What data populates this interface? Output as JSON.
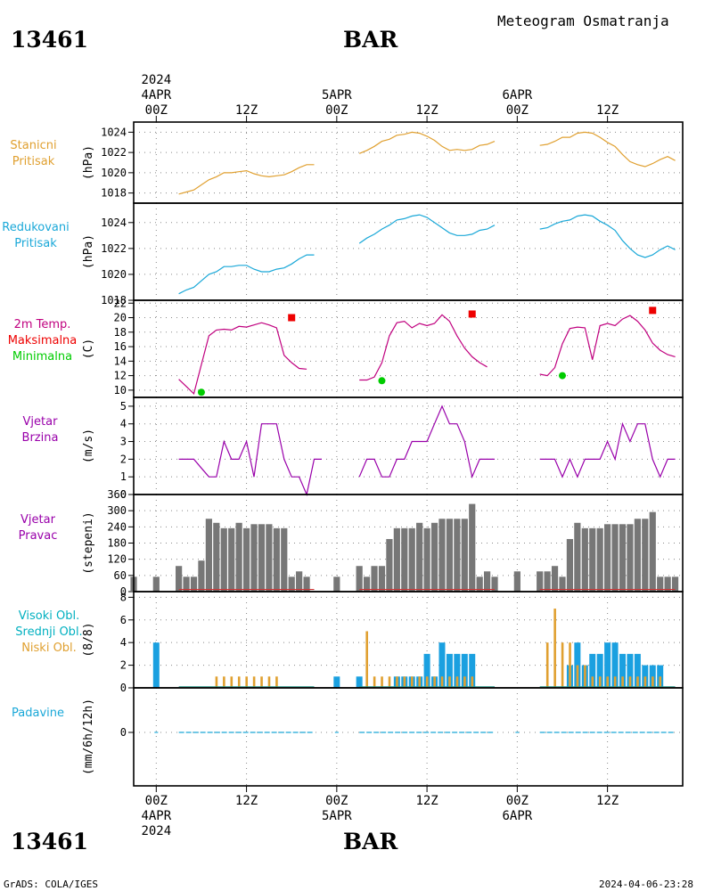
{
  "header": {
    "station_id": "13461",
    "station_name": "BAR",
    "title": "Meteogram Osmatranja",
    "footer_left": "GrADS: COLA/IGES",
    "footer_right": "2024-04-06-23:28"
  },
  "time_axis": {
    "top_year": "2024",
    "bottom_year": "2024",
    "ticks": [
      {
        "h": 0,
        "lines": [
          "4APR",
          "00Z"
        ]
      },
      {
        "h": 12,
        "lines": [
          "12Z"
        ]
      },
      {
        "h": 24,
        "lines": [
          "5APR",
          "00Z"
        ]
      },
      {
        "h": 36,
        "lines": [
          "12Z"
        ]
      },
      {
        "h": 48,
        "lines": [
          "6APR",
          "00Z"
        ]
      },
      {
        "h": 60,
        "lines": [
          "12Z"
        ]
      }
    ],
    "bottom_ticks": [
      {
        "h": 0,
        "lines": [
          "00Z",
          "4APR"
        ]
      },
      {
        "h": 12,
        "lines": [
          "12Z"
        ]
      },
      {
        "h": 24,
        "lines": [
          "00Z",
          "5APR"
        ]
      },
      {
        "h": 36,
        "lines": [
          "12Z"
        ]
      },
      {
        "h": 48,
        "lines": [
          "00Z",
          "6APR"
        ]
      },
      {
        "h": 60,
        "lines": [
          "12Z"
        ]
      }
    ],
    "range_hours": [
      -3,
      70
    ]
  },
  "panels": {
    "stanicni": {
      "labels": [
        "Stanicni",
        "Pritisak"
      ],
      "color": "#e0a030",
      "unit": "(hPa)"
    },
    "redukovani": {
      "labels": [
        "Redukovani",
        "Pritisak"
      ],
      "color": "#1aa8d8",
      "unit": "(hPa)"
    },
    "temp": {
      "labels": [
        "2m Temp.",
        "Maksimalna",
        "Minimalna"
      ],
      "colors": [
        "#c0007f",
        "#ee0000",
        "#00cc00"
      ],
      "unit": "(C)"
    },
    "brzina": {
      "labels": [
        "Vjetar",
        "Brzina"
      ],
      "color": "#9900aa",
      "unit": "(m/s)"
    },
    "pravac": {
      "labels": [
        "Vjetar",
        "Pravac"
      ],
      "color": "#9900aa",
      "unit": "(stepeni)"
    },
    "oblaci": {
      "labels": [
        "Visoki Obl.",
        "Srednji Obl.",
        "Niski Obl."
      ],
      "colors": [
        "#00b0c0",
        "#00b0c0",
        "#e0a030"
      ],
      "unit": "(8/8)"
    },
    "padavine": {
      "labels": [
        "Padavine"
      ],
      "color": "#1aa8d8",
      "unit": "(mm/6h/12h)"
    }
  },
  "chart_data": [
    {
      "type": "line",
      "name": "Stanicni Pritisak",
      "ylabel": "(hPa)",
      "ylim": [
        1017,
        1025
      ],
      "yticks": [
        1018,
        1020,
        1022,
        1024
      ],
      "x": [
        3,
        4,
        5,
        6,
        7,
        8,
        9,
        10,
        11,
        12,
        13,
        14,
        15,
        16,
        17,
        18,
        19,
        20,
        21,
        27,
        28,
        29,
        30,
        31,
        32,
        33,
        34,
        35,
        36,
        37,
        38,
        39,
        40,
        41,
        42,
        43,
        44,
        45,
        51,
        52,
        53,
        54,
        55,
        56,
        57,
        58,
        59,
        60,
        61,
        62,
        63,
        64,
        65,
        66,
        67,
        68,
        69
      ],
      "series": [
        {
          "segments": [
            [
              1017.9,
              1018.1,
              1018.3,
              1018.8,
              1019.3,
              1019.6,
              1020.0,
              1020.0,
              1020.1,
              1020.2,
              1019.9,
              1019.7,
              1019.6,
              1019.7,
              1019.8,
              1020.1,
              1020.5,
              1020.8,
              1020.8
            ],
            [
              1021.9,
              1022.2,
              1022.6,
              1023.1,
              1023.3,
              1023.7,
              1023.8,
              1024.0,
              1023.9,
              1023.6,
              1023.2,
              1022.6,
              1022.2,
              1022.3,
              1022.2,
              1022.3,
              1022.7,
              1022.8,
              1023.1
            ],
            [
              1022.7,
              1022.8,
              1023.1,
              1023.5,
              1023.5,
              1023.9,
              1024.0,
              1023.9,
              1023.5,
              1023.0,
              1022.6,
              1021.8,
              1021.1,
              1020.8,
              1020.6,
              1020.9,
              1021.3,
              1021.6,
              1021.2
            ]
          ]
        }
      ]
    },
    {
      "type": "line",
      "name": "Redukovani Pritisak",
      "ylabel": "(hPa)",
      "ylim": [
        1018,
        1025.5
      ],
      "yticks": [
        1018,
        1020,
        1022,
        1024
      ],
      "series": [
        {
          "segments": [
            [
              1018.5,
              1018.8,
              1019.0,
              1019.5,
              1020.0,
              1020.2,
              1020.6,
              1020.6,
              1020.7,
              1020.7,
              1020.4,
              1020.2,
              1020.2,
              1020.4,
              1020.5,
              1020.8,
              1021.2,
              1021.5,
              1021.5
            ],
            [
              1022.4,
              1022.8,
              1023.1,
              1023.5,
              1023.8,
              1024.2,
              1024.3,
              1024.5,
              1024.6,
              1024.4,
              1024.0,
              1023.6,
              1023.2,
              1023.0,
              1023.0,
              1023.1,
              1023.4,
              1023.5,
              1023.8
            ],
            [
              1023.5,
              1023.6,
              1023.9,
              1024.1,
              1024.2,
              1024.5,
              1024.6,
              1024.5,
              1024.1,
              1023.8,
              1023.4,
              1022.6,
              1022.0,
              1021.5,
              1021.3,
              1021.5,
              1021.9,
              1022.2,
              1021.9
            ]
          ]
        }
      ]
    },
    {
      "type": "line",
      "name": "2m Temp.",
      "ylabel": "(C)",
      "ylim": [
        9,
        22.4
      ],
      "yticks": [
        10,
        12,
        14,
        16,
        18,
        20,
        22
      ],
      "series": [
        {
          "name": "2m Temp.",
          "segments": [
            [
              11.5,
              10.5,
              9.5,
              13.5,
              17.5,
              18.3,
              18.4,
              18.3,
              18.8,
              18.7,
              19.0,
              19.3,
              19.0,
              18.6,
              14.8,
              13.8,
              13.0,
              12.9,
              null
            ],
            [
              11.4,
              11.4,
              11.8,
              13.8,
              17.5,
              19.3,
              19.5,
              18.6,
              19.2,
              18.9,
              19.2,
              20.4,
              19.5,
              17.5,
              15.8,
              14.6,
              13.8,
              13.2,
              null
            ],
            [
              12.2,
              12.0,
              13.1,
              16.4,
              18.5,
              18.7,
              18.6,
              14.2,
              18.9,
              19.2,
              18.9,
              19.8,
              20.3,
              19.5,
              18.3,
              16.5,
              15.5,
              14.9,
              14.6
            ]
          ]
        },
        {
          "name": "Maksimalna",
          "points": [
            [
              18,
              20.0
            ],
            [
              42,
              20.5
            ],
            [
              66,
              21.0
            ]
          ]
        },
        {
          "name": "Minimalna",
          "points": [
            [
              6,
              9.7
            ],
            [
              30,
              11.3
            ],
            [
              54,
              12.0
            ]
          ]
        }
      ]
    },
    {
      "type": "line",
      "name": "Vjetar Brzina",
      "ylabel": "(m/s)",
      "ylim": [
        0,
        5.5
      ],
      "yticks": [
        0,
        1,
        2,
        3,
        4,
        5
      ],
      "series": [
        {
          "segments": [
            [
              2,
              2,
              2,
              1.5,
              1,
              1,
              3,
              2,
              2,
              3,
              1,
              4,
              4,
              4,
              2,
              1,
              1,
              0,
              2,
              2
            ],
            [
              1,
              2,
              2,
              1,
              1,
              2,
              2,
              3,
              3,
              3,
              4,
              5,
              4,
              4,
              3,
              1,
              2,
              2,
              2
            ],
            [
              2,
              2,
              2,
              1,
              2,
              1,
              2,
              2,
              2,
              3,
              2,
              4,
              3,
              4,
              4,
              2,
              1,
              2,
              2
            ]
          ]
        }
      ]
    },
    {
      "type": "bar",
      "name": "Vjetar Pravac",
      "ylabel": "(stepeni)",
      "ylim": [
        0,
        360
      ],
      "yticks": [
        0,
        60,
        120,
        180,
        240,
        300,
        360
      ],
      "x": [
        -3,
        0,
        3,
        4,
        5,
        6,
        7,
        8,
        9,
        10,
        11,
        12,
        13,
        14,
        15,
        16,
        17,
        18,
        19,
        20,
        21,
        24,
        27,
        28,
        29,
        30,
        31,
        32,
        33,
        34,
        35,
        36,
        37,
        38,
        39,
        40,
        41,
        42,
        43,
        44,
        45,
        48,
        51,
        52,
        53,
        54,
        55,
        56,
        57,
        58,
        59,
        60,
        61,
        62,
        63,
        64,
        65,
        66,
        67,
        68,
        69
      ],
      "values": [
        55,
        55,
        95,
        55,
        55,
        115,
        270,
        255,
        235,
        235,
        255,
        235,
        250,
        250,
        250,
        235,
        235,
        55,
        75,
        55,
        0,
        55,
        95,
        55,
        95,
        95,
        195,
        235,
        235,
        235,
        255,
        235,
        255,
        270,
        270,
        270,
        270,
        325,
        55,
        75,
        55,
        75,
        75,
        75,
        95,
        55,
        195,
        255,
        235,
        235,
        235,
        250,
        250,
        250,
        250,
        270,
        270,
        295,
        55,
        55,
        55
      ]
    },
    {
      "type": "bar",
      "name": "Oblaci",
      "ylabel": "(8/8)",
      "ylim": [
        0,
        8.5
      ],
      "yticks": [
        0,
        2,
        4,
        6,
        8
      ],
      "series": [
        {
          "name": "Visoki Obl.",
          "x": [
            0,
            24,
            27,
            32,
            33,
            34,
            35,
            36,
            37,
            38,
            39,
            40,
            41,
            42,
            55,
            56,
            57,
            58,
            59,
            60,
            61,
            62,
            63,
            64,
            65,
            66,
            67
          ],
          "values": [
            4,
            1,
            1,
            1,
            1,
            1,
            1,
            3,
            1,
            4,
            3,
            3,
            3,
            3,
            2,
            4,
            2,
            3,
            3,
            4,
            4,
            3,
            3,
            3,
            2,
            2,
            2
          ]
        },
        {
          "name": "Niski Obl.",
          "x": [
            8,
            9,
            10,
            11,
            12,
            13,
            14,
            15,
            16,
            28,
            29,
            30,
            31,
            32,
            33,
            34,
            35,
            36,
            37,
            38,
            39,
            40,
            41,
            42,
            52,
            53,
            54,
            55,
            56,
            57,
            58,
            59,
            60,
            61,
            62,
            63,
            64,
            65,
            66,
            67
          ],
          "values": [
            1,
            1,
            1,
            1,
            1,
            1,
            1,
            1,
            1,
            5,
            1,
            1,
            1,
            1,
            1,
            1,
            1,
            1,
            1,
            1,
            1,
            1,
            1,
            1,
            4,
            7,
            4,
            4,
            2,
            2,
            1,
            1,
            1,
            1,
            1,
            1,
            1,
            1,
            1,
            1
          ]
        }
      ]
    },
    {
      "type": "bar",
      "name": "Padavine",
      "ylabel": "(mm/6h/12h)",
      "ylim": [
        -3,
        2.5
      ],
      "yticks": [
        0
      ],
      "values": []
    }
  ]
}
